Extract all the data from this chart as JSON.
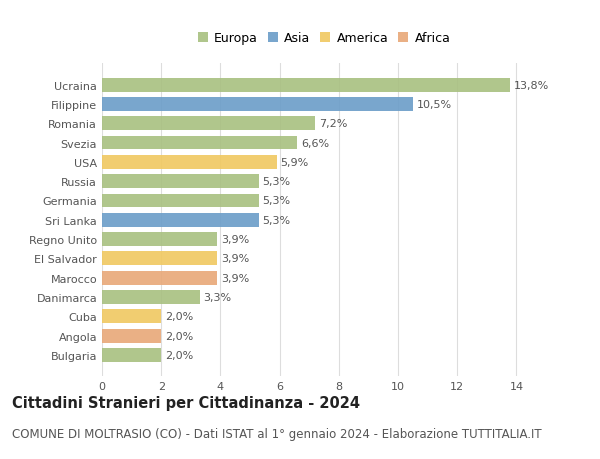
{
  "countries": [
    "Ucraina",
    "Filippine",
    "Romania",
    "Svezia",
    "USA",
    "Russia",
    "Germania",
    "Sri Lanka",
    "Regno Unito",
    "El Salvador",
    "Marocco",
    "Danimarca",
    "Cuba",
    "Angola",
    "Bulgaria"
  ],
  "values": [
    13.8,
    10.5,
    7.2,
    6.6,
    5.9,
    5.3,
    5.3,
    5.3,
    3.9,
    3.9,
    3.9,
    3.3,
    2.0,
    2.0,
    2.0
  ],
  "labels": [
    "13,8%",
    "10,5%",
    "7,2%",
    "6,6%",
    "5,9%",
    "5,3%",
    "5,3%",
    "5,3%",
    "3,9%",
    "3,9%",
    "3,9%",
    "3,3%",
    "2,0%",
    "2,0%",
    "2,0%"
  ],
  "continents": [
    "Europa",
    "Asia",
    "Europa",
    "Europa",
    "America",
    "Europa",
    "Europa",
    "Asia",
    "Europa",
    "America",
    "Africa",
    "Europa",
    "America",
    "Africa",
    "Europa"
  ],
  "colors": {
    "Europa": "#a8c080",
    "Asia": "#6b9dc8",
    "America": "#f0c860",
    "Africa": "#e8a878"
  },
  "legend_items": [
    "Europa",
    "Asia",
    "America",
    "Africa"
  ],
  "title": "Cittadini Stranieri per Cittadinanza - 2024",
  "subtitle": "COMUNE DI MOLTRASIO (CO) - Dati ISTAT al 1° gennaio 2024 - Elaborazione TUTTITALIA.IT",
  "xlim": [
    0,
    15
  ],
  "xticks": [
    0,
    2,
    4,
    6,
    8,
    10,
    12,
    14
  ],
  "bg_color": "#ffffff",
  "grid_color": "#dddddd",
  "bar_height": 0.72,
  "title_fontsize": 10.5,
  "subtitle_fontsize": 8.5,
  "label_fontsize": 8,
  "tick_fontsize": 8,
  "legend_fontsize": 9
}
